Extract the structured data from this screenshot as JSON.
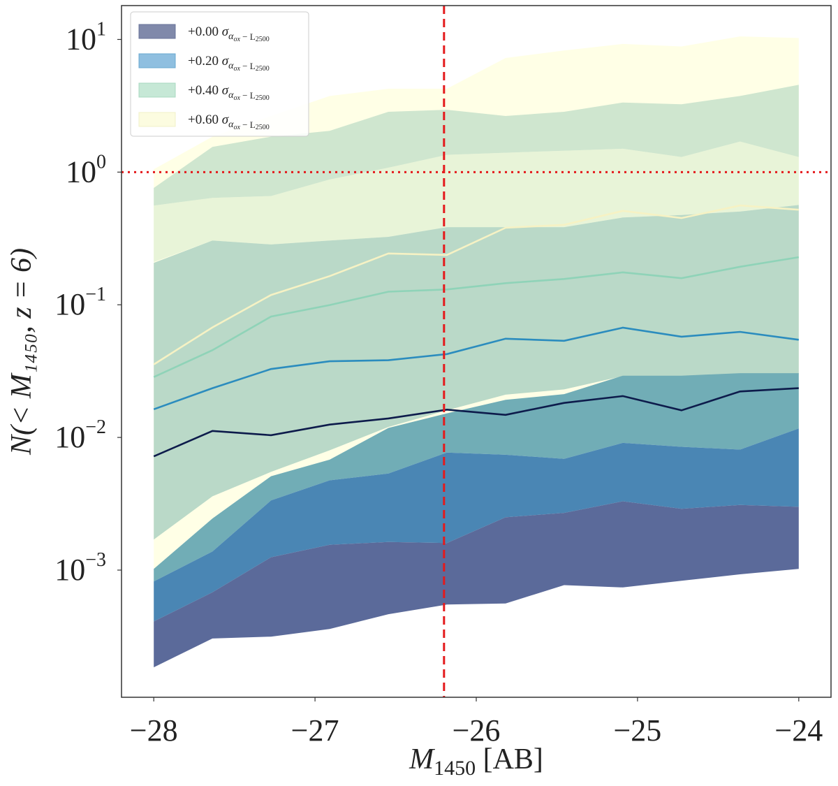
{
  "chart_data": {
    "type": "area",
    "x": [
      -28.0,
      -27.636,
      -27.273,
      -26.909,
      -26.545,
      -26.182,
      -25.818,
      -25.455,
      -25.091,
      -24.727,
      -24.364,
      -24.0
    ],
    "xlim": [
      -28.2,
      -23.8
    ],
    "ylim": [
      0.00011,
      18
    ],
    "ylog": true,
    "grid": false,
    "xticks": [
      {
        "v": -28,
        "t": "−28"
      },
      {
        "v": -27,
        "t": "−27"
      },
      {
        "v": -26,
        "t": "−26"
      },
      {
        "v": -25,
        "t": "−25"
      },
      {
        "v": -24,
        "t": "−24"
      }
    ],
    "yticks": [
      {
        "v": 0.001,
        "base": "10",
        "exp": "−3"
      },
      {
        "v": 0.01,
        "base": "10",
        "exp": "−2"
      },
      {
        "v": 0.1,
        "base": "10",
        "exp": "−1"
      },
      {
        "v": 1,
        "base": "10",
        "exp": "0"
      },
      {
        "v": 10,
        "base": "10",
        "exp": "1"
      }
    ],
    "xlabel": {
      "main": "M",
      "sub": "1450",
      "rest": " [AB]"
    },
    "ylabel": "N(< M₁₄₅₀, z = 6)",
    "reference_lines": [
      {
        "orientation": "vertical",
        "value": -26.2,
        "color": "#e41a1c",
        "style": "dashed"
      },
      {
        "orientation": "horizontal",
        "value": 1,
        "color": "#e41a1c",
        "style": "dotted"
      }
    ],
    "legend_position": "top-left",
    "series": [
      {
        "name": "+0.00 σαox − L2500",
        "legend": {
          "prefix": "+0.00 ",
          "sigma": "σ",
          "alpha": "α",
          "alphasub": "ox",
          "suffix": " − L",
          "lsub": "2500"
        },
        "line_color": "#0d1b4b",
        "outer_fill": "#5b6a9a",
        "inner_fill": "#5b6a9a",
        "median": [
          0.0072,
          0.0112,
          0.0104,
          0.0125,
          0.0139,
          0.0162,
          0.0148,
          0.0182,
          0.0205,
          0.016,
          0.0222,
          0.0235
        ],
        "outer_low": [
          0.000185,
          0.000305,
          0.000315,
          0.00036,
          0.000465,
          0.00055,
          0.00056,
          0.00077,
          0.00074,
          0.00083,
          0.00093,
          0.00102
        ],
        "outer_high": [
          0.00041,
          0.00068,
          0.00125,
          0.00155,
          0.00163,
          0.0016,
          0.0025,
          0.0027,
          0.0033,
          0.0029,
          0.0031,
          0.003
        ],
        "inner_low": [
          0.00041,
          0.00068,
          0.00125,
          0.00155,
          0.00163,
          0.0016,
          0.0025,
          0.0027,
          0.0033,
          0.0029,
          0.0031,
          0.003
        ],
        "inner_high": [
          0.00041,
          0.00068,
          0.00125,
          0.00155,
          0.00163,
          0.0016,
          0.0025,
          0.0027,
          0.0033,
          0.0029,
          0.0031,
          0.003
        ]
      },
      {
        "name": "+0.20 σαox − L2500",
        "legend": {
          "prefix": "+0.20 ",
          "sigma": "σ",
          "alpha": "α",
          "alphasub": "ox",
          "suffix": " − L",
          "lsub": "2500"
        },
        "line_color": "#2b8cbe",
        "outer_fill": "#4a86b4",
        "inner_fill": "#4a86b4",
        "median": [
          0.0163,
          0.0235,
          0.0328,
          0.0375,
          0.0382,
          0.0425,
          0.0555,
          0.0535,
          0.0672,
          0.0575,
          0.0625,
          0.0545
        ],
        "outer_low": [
          0.00041,
          0.00068,
          0.00125,
          0.00155,
          0.00163,
          0.0016,
          0.0025,
          0.0027,
          0.0033,
          0.0029,
          0.0031,
          0.003
        ],
        "outer_high": [
          0.00082,
          0.00138,
          0.00335,
          0.00475,
          0.00535,
          0.0077,
          0.0074,
          0.0069,
          0.0091,
          0.0085,
          0.0081,
          0.0117
        ],
        "inner_low": [
          0.00082,
          0.00138,
          0.00335,
          0.00475,
          0.00535,
          0.0077,
          0.0074,
          0.0069,
          0.0091,
          0.0085,
          0.0081,
          0.0117
        ],
        "inner_high": [
          0.00082,
          0.00138,
          0.00335,
          0.00475,
          0.00535,
          0.0077,
          0.0074,
          0.0069,
          0.0091,
          0.0085,
          0.0081,
          0.0117
        ]
      },
      {
        "name": "+0.40 σαox − L2500",
        "legend": {
          "prefix": "+0.40 ",
          "sigma": "σ",
          "alpha": "α",
          "alphasub": "ox",
          "suffix": " − L",
          "lsub": "2500"
        },
        "line_color": "#8fd3b8",
        "outer_fill": "#71adb6",
        "inner_fill": "#71adb6",
        "median": [
          0.0285,
          0.0455,
          0.0815,
          0.0995,
          0.1255,
          0.1305,
          0.1455,
          0.1565,
          0.1755,
          0.1585,
          0.1935,
          0.2285
        ],
        "outer_low": [
          0.00082,
          0.00138,
          0.00335,
          0.00475,
          0.00535,
          0.0077,
          0.0074,
          0.0069,
          0.0091,
          0.0085,
          0.0081,
          0.0117
        ],
        "outer_high": [
          0.00102,
          0.00245,
          0.0051,
          0.0068,
          0.0118,
          0.0152,
          0.0192,
          0.0212,
          0.0292,
          0.0292,
          0.0305,
          0.0305
        ],
        "inner_low": [
          0.00102,
          0.00245,
          0.0051,
          0.0068,
          0.0118,
          0.0152,
          0.0192,
          0.0212,
          0.0292,
          0.0292,
          0.0305,
          0.0305
        ],
        "inner_high": [
          0.00102,
          0.00245,
          0.0051,
          0.0068,
          0.0118,
          0.0152,
          0.0192,
          0.0212,
          0.0292,
          0.0292,
          0.0305,
          0.0305
        ]
      },
      {
        "name": "+0.60 σαox − L2500",
        "legend": {
          "prefix": "+0.60 ",
          "sigma": "σ",
          "alpha": "α",
          "alphasub": "ox",
          "suffix": " − L",
          "lsub": "2500"
        },
        "line_color": "#f6f2c4",
        "outer_fill": "#ffffe6",
        "inner_fill": "#bad9c8",
        "median": [
          0.0355,
          0.0675,
          0.1185,
          0.1645,
          0.2435,
          0.2375,
          0.3805,
          0.4005,
          0.5105,
          0.4505,
          0.5605,
          0.5205
        ],
        "outer_low": [
          0.00102,
          0.00245,
          0.0051,
          0.0068,
          0.0118,
          0.0152,
          0.0192,
          0.0212,
          0.0292,
          0.0292,
          0.0305,
          0.0305
        ],
        "outer_high": [
          1.05,
          1.85,
          2.65,
          3.75,
          4.25,
          4.25,
          7.25,
          8.25,
          9.25,
          8.85,
          10.55,
          10.25
        ],
        "inner_low": [
          0.0017,
          0.0036,
          0.0055,
          0.008,
          0.012,
          0.016,
          0.021,
          0.023,
          0.029,
          0.029,
          0.03,
          0.03
        ],
        "inner_high": [
          0.207,
          0.305,
          0.285,
          0.305,
          0.325,
          0.385,
          0.385,
          0.385,
          0.455,
          0.475,
          0.505,
          0.565
        ]
      }
    ],
    "envelope_bands": [
      {
        "fill": "#e8f4d8",
        "low": [
          0.21,
          0.305,
          0.285,
          0.305,
          0.325,
          0.385,
          0.385,
          0.385,
          0.455,
          0.475,
          0.505,
          0.565
        ],
        "high": [
          0.56,
          0.64,
          0.66,
          0.88,
          1.08,
          1.35,
          1.4,
          1.45,
          1.5,
          1.3,
          1.7,
          1.3
        ]
      },
      {
        "fill": "#cfe6cf",
        "low": [
          0.56,
          0.64,
          0.66,
          0.88,
          1.08,
          1.35,
          1.4,
          1.45,
          1.5,
          1.3,
          1.7,
          1.3
        ],
        "high": [
          0.76,
          1.55,
          1.85,
          2.05,
          2.85,
          2.95,
          2.65,
          2.85,
          3.35,
          3.25,
          3.75,
          4.55
        ]
      }
    ]
  }
}
